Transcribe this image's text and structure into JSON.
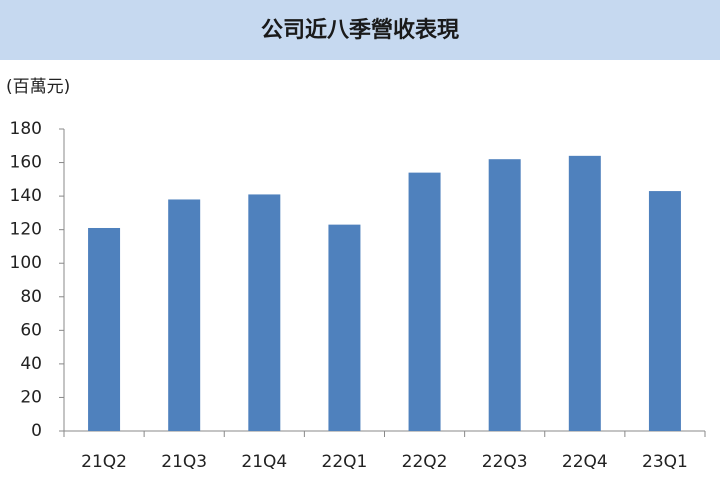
{
  "chart_data": {
    "type": "bar",
    "title": "公司近八季營收表現",
    "y_label": "(百萬元)",
    "categories": [
      "21Q2",
      "21Q3",
      "21Q4",
      "22Q1",
      "22Q2",
      "22Q3",
      "22Q4",
      "23Q1"
    ],
    "values": [
      121,
      138,
      141,
      123,
      154,
      162,
      164,
      143
    ],
    "color": "#4f81bd",
    "ylim": [
      0,
      180
    ],
    "yticks": [
      0,
      20,
      40,
      60,
      80,
      100,
      120,
      140,
      160,
      180
    ],
    "grid": false
  }
}
